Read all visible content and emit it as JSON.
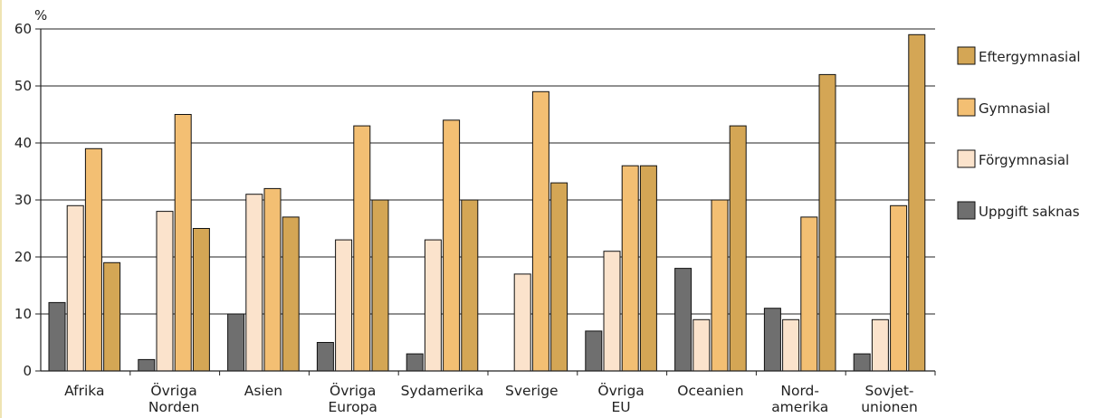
{
  "chart_data": {
    "type": "bar",
    "ylabel": "%",
    "ylim": [
      0,
      60
    ],
    "yticks": [
      "0",
      "10",
      "20",
      "30",
      "40",
      "50",
      "60"
    ],
    "grid": true,
    "legend_position": "right",
    "categories": [
      [
        "Afrika"
      ],
      [
        "Övriga",
        "Norden"
      ],
      [
        "Asien"
      ],
      [
        "Övriga",
        "Europa"
      ],
      [
        "Sydamerika"
      ],
      [
        "Sverige"
      ],
      [
        "Övriga",
        "EU"
      ],
      [
        "Oceanien"
      ],
      [
        "Nord-",
        "amerika"
      ],
      [
        "Sovjet-",
        "unionen"
      ]
    ],
    "series": [
      {
        "name": "Uppgift saknas",
        "color": "#6f6f6f",
        "values": [
          12,
          2,
          10,
          5,
          3,
          0,
          7,
          18,
          11,
          3
        ]
      },
      {
        "name": "Förgymnasial",
        "color": "#fbe3cc",
        "values": [
          29,
          28,
          31,
          23,
          23,
          17,
          21,
          9,
          9,
          9
        ]
      },
      {
        "name": "Gymnasial",
        "color": "#f3bf73",
        "values": [
          39,
          45,
          32,
          43,
          44,
          49,
          36,
          30,
          27,
          29
        ]
      },
      {
        "name": "Eftergymnasial",
        "color": "#d4a655",
        "values": [
          19,
          25,
          27,
          30,
          30,
          33,
          36,
          43,
          52,
          59
        ]
      }
    ],
    "legend_order": [
      "Eftergymnasial",
      "Gymnasial",
      "Förgymnasial",
      "Uppgift saknas"
    ]
  },
  "colors": {
    "axis": "#222222",
    "bar_stroke": "#111111",
    "page_border": "#e8dc9a"
  }
}
